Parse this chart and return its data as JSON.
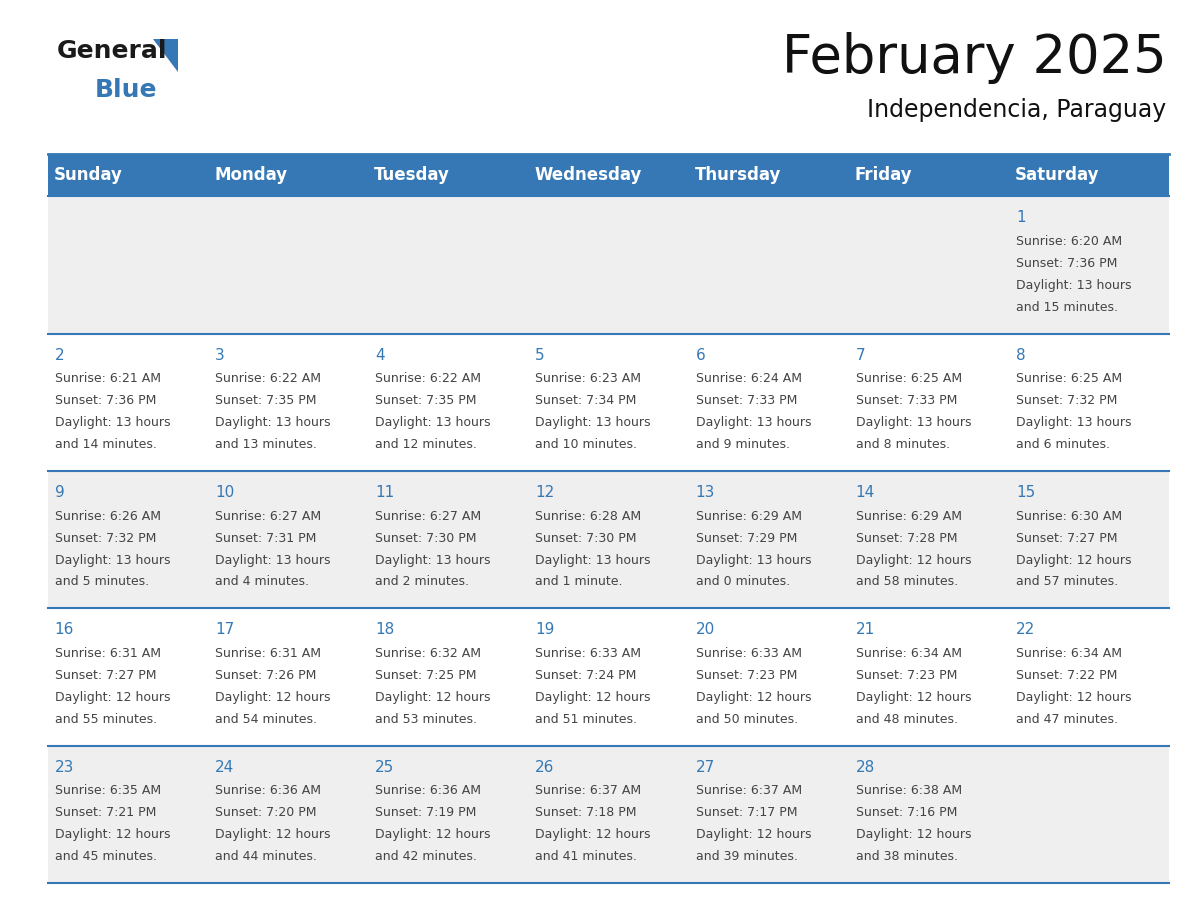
{
  "title": "February 2025",
  "subtitle": "Independencia, Paraguay",
  "header_color": "#3578b5",
  "header_text_color": "#ffffff",
  "day_names": [
    "Sunday",
    "Monday",
    "Tuesday",
    "Wednesday",
    "Thursday",
    "Friday",
    "Saturday"
  ],
  "cell_bg_even": "#efefef",
  "cell_bg_odd": "#ffffff",
  "cell_border_color": "#3578b5",
  "day_number_color": "#3578b5",
  "info_text_color": "#444444",
  "days": [
    {
      "day": 1,
      "col": 6,
      "row": 0,
      "sunrise": "6:20 AM",
      "sunset": "7:36 PM",
      "daylight_line1": "Daylight: 13 hours",
      "daylight_line2": "and 15 minutes."
    },
    {
      "day": 2,
      "col": 0,
      "row": 1,
      "sunrise": "6:21 AM",
      "sunset": "7:36 PM",
      "daylight_line1": "Daylight: 13 hours",
      "daylight_line2": "and 14 minutes."
    },
    {
      "day": 3,
      "col": 1,
      "row": 1,
      "sunrise": "6:22 AM",
      "sunset": "7:35 PM",
      "daylight_line1": "Daylight: 13 hours",
      "daylight_line2": "and 13 minutes."
    },
    {
      "day": 4,
      "col": 2,
      "row": 1,
      "sunrise": "6:22 AM",
      "sunset": "7:35 PM",
      "daylight_line1": "Daylight: 13 hours",
      "daylight_line2": "and 12 minutes."
    },
    {
      "day": 5,
      "col": 3,
      "row": 1,
      "sunrise": "6:23 AM",
      "sunset": "7:34 PM",
      "daylight_line1": "Daylight: 13 hours",
      "daylight_line2": "and 10 minutes."
    },
    {
      "day": 6,
      "col": 4,
      "row": 1,
      "sunrise": "6:24 AM",
      "sunset": "7:33 PM",
      "daylight_line1": "Daylight: 13 hours",
      "daylight_line2": "and 9 minutes."
    },
    {
      "day": 7,
      "col": 5,
      "row": 1,
      "sunrise": "6:25 AM",
      "sunset": "7:33 PM",
      "daylight_line1": "Daylight: 13 hours",
      "daylight_line2": "and 8 minutes."
    },
    {
      "day": 8,
      "col": 6,
      "row": 1,
      "sunrise": "6:25 AM",
      "sunset": "7:32 PM",
      "daylight_line1": "Daylight: 13 hours",
      "daylight_line2": "and 6 minutes."
    },
    {
      "day": 9,
      "col": 0,
      "row": 2,
      "sunrise": "6:26 AM",
      "sunset": "7:32 PM",
      "daylight_line1": "Daylight: 13 hours",
      "daylight_line2": "and 5 minutes."
    },
    {
      "day": 10,
      "col": 1,
      "row": 2,
      "sunrise": "6:27 AM",
      "sunset": "7:31 PM",
      "daylight_line1": "Daylight: 13 hours",
      "daylight_line2": "and 4 minutes."
    },
    {
      "day": 11,
      "col": 2,
      "row": 2,
      "sunrise": "6:27 AM",
      "sunset": "7:30 PM",
      "daylight_line1": "Daylight: 13 hours",
      "daylight_line2": "and 2 minutes."
    },
    {
      "day": 12,
      "col": 3,
      "row": 2,
      "sunrise": "6:28 AM",
      "sunset": "7:30 PM",
      "daylight_line1": "Daylight: 13 hours",
      "daylight_line2": "and 1 minute."
    },
    {
      "day": 13,
      "col": 4,
      "row": 2,
      "sunrise": "6:29 AM",
      "sunset": "7:29 PM",
      "daylight_line1": "Daylight: 13 hours",
      "daylight_line2": "and 0 minutes."
    },
    {
      "day": 14,
      "col": 5,
      "row": 2,
      "sunrise": "6:29 AM",
      "sunset": "7:28 PM",
      "daylight_line1": "Daylight: 12 hours",
      "daylight_line2": "and 58 minutes."
    },
    {
      "day": 15,
      "col": 6,
      "row": 2,
      "sunrise": "6:30 AM",
      "sunset": "7:27 PM",
      "daylight_line1": "Daylight: 12 hours",
      "daylight_line2": "and 57 minutes."
    },
    {
      "day": 16,
      "col": 0,
      "row": 3,
      "sunrise": "6:31 AM",
      "sunset": "7:27 PM",
      "daylight_line1": "Daylight: 12 hours",
      "daylight_line2": "and 55 minutes."
    },
    {
      "day": 17,
      "col": 1,
      "row": 3,
      "sunrise": "6:31 AM",
      "sunset": "7:26 PM",
      "daylight_line1": "Daylight: 12 hours",
      "daylight_line2": "and 54 minutes."
    },
    {
      "day": 18,
      "col": 2,
      "row": 3,
      "sunrise": "6:32 AM",
      "sunset": "7:25 PM",
      "daylight_line1": "Daylight: 12 hours",
      "daylight_line2": "and 53 minutes."
    },
    {
      "day": 19,
      "col": 3,
      "row": 3,
      "sunrise": "6:33 AM",
      "sunset": "7:24 PM",
      "daylight_line1": "Daylight: 12 hours",
      "daylight_line2": "and 51 minutes."
    },
    {
      "day": 20,
      "col": 4,
      "row": 3,
      "sunrise": "6:33 AM",
      "sunset": "7:23 PM",
      "daylight_line1": "Daylight: 12 hours",
      "daylight_line2": "and 50 minutes."
    },
    {
      "day": 21,
      "col": 5,
      "row": 3,
      "sunrise": "6:34 AM",
      "sunset": "7:23 PM",
      "daylight_line1": "Daylight: 12 hours",
      "daylight_line2": "and 48 minutes."
    },
    {
      "day": 22,
      "col": 6,
      "row": 3,
      "sunrise": "6:34 AM",
      "sunset": "7:22 PM",
      "daylight_line1": "Daylight: 12 hours",
      "daylight_line2": "and 47 minutes."
    },
    {
      "day": 23,
      "col": 0,
      "row": 4,
      "sunrise": "6:35 AM",
      "sunset": "7:21 PM",
      "daylight_line1": "Daylight: 12 hours",
      "daylight_line2": "and 45 minutes."
    },
    {
      "day": 24,
      "col": 1,
      "row": 4,
      "sunrise": "6:36 AM",
      "sunset": "7:20 PM",
      "daylight_line1": "Daylight: 12 hours",
      "daylight_line2": "and 44 minutes."
    },
    {
      "day": 25,
      "col": 2,
      "row": 4,
      "sunrise": "6:36 AM",
      "sunset": "7:19 PM",
      "daylight_line1": "Daylight: 12 hours",
      "daylight_line2": "and 42 minutes."
    },
    {
      "day": 26,
      "col": 3,
      "row": 4,
      "sunrise": "6:37 AM",
      "sunset": "7:18 PM",
      "daylight_line1": "Daylight: 12 hours",
      "daylight_line2": "and 41 minutes."
    },
    {
      "day": 27,
      "col": 4,
      "row": 4,
      "sunrise": "6:37 AM",
      "sunset": "7:17 PM",
      "daylight_line1": "Daylight: 12 hours",
      "daylight_line2": "and 39 minutes."
    },
    {
      "day": 28,
      "col": 5,
      "row": 4,
      "sunrise": "6:38 AM",
      "sunset": "7:16 PM",
      "daylight_line1": "Daylight: 12 hours",
      "daylight_line2": "and 38 minutes."
    }
  ],
  "num_rows": 5,
  "background_color": "#ffffff",
  "title_fontsize": 38,
  "subtitle_fontsize": 17,
  "header_fontsize": 12,
  "day_num_fontsize": 11,
  "info_fontsize": 9
}
